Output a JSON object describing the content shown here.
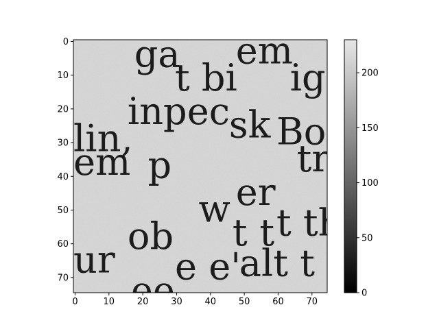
{
  "chart_data": {
    "type": "heatmap",
    "title": "",
    "xlabel": "",
    "ylabel": "",
    "colormap": "gray",
    "grid": false,
    "xlim": [
      -0.5,
      74.5
    ],
    "ylim": [
      74.5,
      -0.5
    ],
    "x_ticks": [
      0,
      10,
      20,
      30,
      40,
      50,
      60,
      70
    ],
    "y_ticks": [
      0,
      10,
      20,
      30,
      40,
      50,
      60,
      70
    ],
    "grid_size": [
      75,
      75
    ],
    "value_range": [
      0,
      230
    ],
    "background_value": 215,
    "colorbar": {
      "ticks": [
        0,
        50,
        100,
        150,
        200
      ],
      "range": [
        0,
        230
      ],
      "placement": "right"
    },
    "image_content": "scanned document text patch (grayscale crop of printed serif letters)",
    "text_fragments": [
      {
        "text": "ga",
        "x": 18,
        "y": 4,
        "ink": 30
      },
      {
        "text": "em",
        "x": 48,
        "y": 3,
        "ink": 30
      },
      {
        "text": "t bi",
        "x": 30,
        "y": 11,
        "ink": 25
      },
      {
        "text": "ig",
        "x": 64,
        "y": 11,
        "ink": 30
      },
      {
        "text": "inpec",
        "x": 16,
        "y": 21,
        "ink": 25
      },
      {
        "text": "sk",
        "x": 46,
        "y": 25,
        "ink": 25
      },
      {
        "text": "Bo",
        "x": 60,
        "y": 27,
        "ink": 25
      },
      {
        "text": "lin,",
        "x": 0,
        "y": 29,
        "ink": 30
      },
      {
        "text": "em",
        "x": 0,
        "y": 36,
        "ink": 30
      },
      {
        "text": "p",
        "x": 22,
        "y": 37,
        "ink": 25
      },
      {
        "text": "tr",
        "x": 66,
        "y": 35,
        "ink": 25
      },
      {
        "text": "er",
        "x": 48,
        "y": 45,
        "ink": 30
      },
      {
        "text": "w",
        "x": 37,
        "y": 50,
        "ink": 30
      },
      {
        "text": "t th",
        "x": 60,
        "y": 54,
        "ink": 25
      },
      {
        "text": "ob",
        "x": 16,
        "y": 58,
        "ink": 25
      },
      {
        "text": "t",
        "x": 47,
        "y": 57,
        "ink": 20
      },
      {
        "text": "t",
        "x": 55,
        "y": 57,
        "ink": 20
      },
      {
        "text": "ur",
        "x": 0,
        "y": 65,
        "ink": 30
      },
      {
        "text": "e e'",
        "x": 30,
        "y": 67,
        "ink": 30
      },
      {
        "text": "alt t",
        "x": 49,
        "y": 66,
        "ink": 25
      },
      {
        "text": "ee",
        "x": 17,
        "y": 74,
        "ink": 40
      }
    ]
  }
}
